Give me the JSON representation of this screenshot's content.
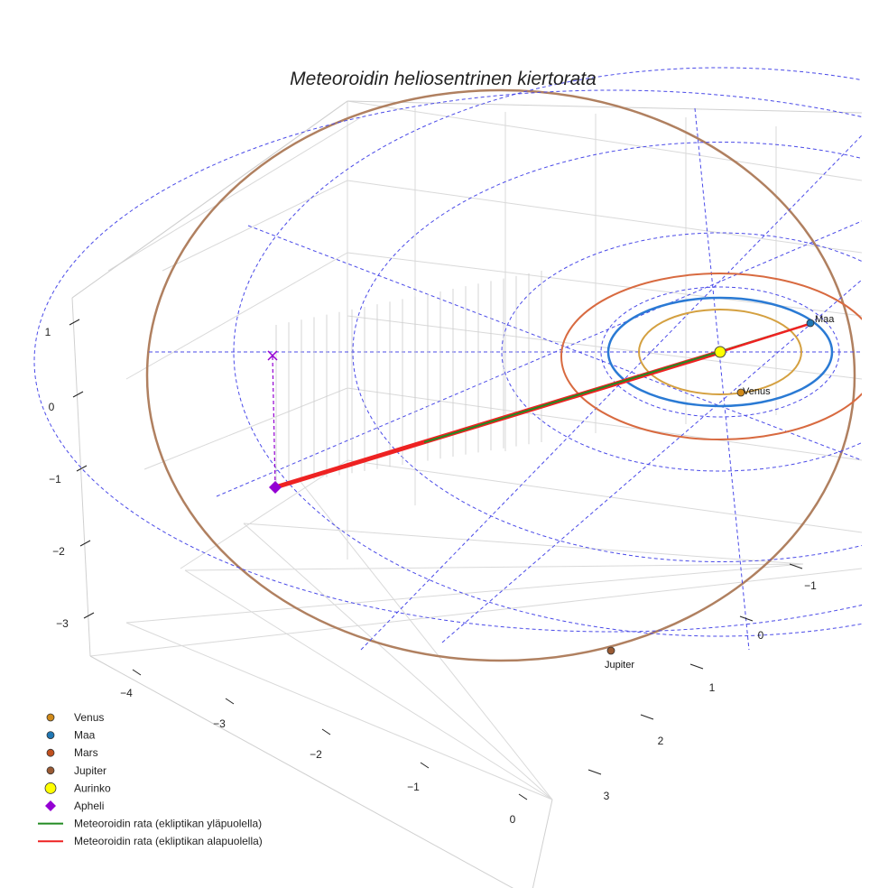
{
  "chart_data": {
    "type": "scatter",
    "title": "Meteoroidin heliosentrinen kiertorata",
    "xlabel": "",
    "ylabel": "",
    "zlabel": "",
    "projection": "3d",
    "x_ticks": [
      "−4",
      "−3",
      "−2",
      "−1",
      "0"
    ],
    "y_ticks": [
      "−1",
      "0",
      "1",
      "2",
      "3"
    ],
    "z_ticks": [
      "1",
      "0",
      "−1",
      "−2",
      "−3"
    ],
    "xlim": [
      -4.6,
      0.2
    ],
    "ylim": [
      -1.2,
      3.4
    ],
    "zlim": [
      -3.4,
      1.2
    ],
    "grid": true,
    "legend_position": "bottom-left",
    "colors": {
      "venus": "#d08a1a",
      "maa": "#1f77b4",
      "mars": "#c0501e",
      "jupiter": "#9a5a33",
      "aurinko": "#ffff00",
      "apheli": "#9400d3",
      "above": "#228b22",
      "below": "#ee2222",
      "reference_grid": "#4a4ae8",
      "orbit_venus": "#d4a040",
      "orbit_earth": "#2a7ad4",
      "orbit_mars": "#d86a40",
      "orbit_jupiter": "#b08060"
    },
    "series": [
      {
        "name": "Venus",
        "marker": "circle",
        "label": "Venus"
      },
      {
        "name": "Maa",
        "marker": "circle",
        "label": "Maa"
      },
      {
        "name": "Mars",
        "marker": "circle",
        "label": ""
      },
      {
        "name": "Jupiter",
        "marker": "circle",
        "label": "Jupiter"
      },
      {
        "name": "Aurinko",
        "marker": "circle"
      },
      {
        "name": "Apheli",
        "marker": "diamond"
      },
      {
        "name": "Meteoroidin rata (ekliptikan yläpuolella)",
        "marker": "line"
      },
      {
        "name": "Meteoroidin rata (ekliptikan alapuolella)",
        "marker": "line"
      }
    ]
  }
}
